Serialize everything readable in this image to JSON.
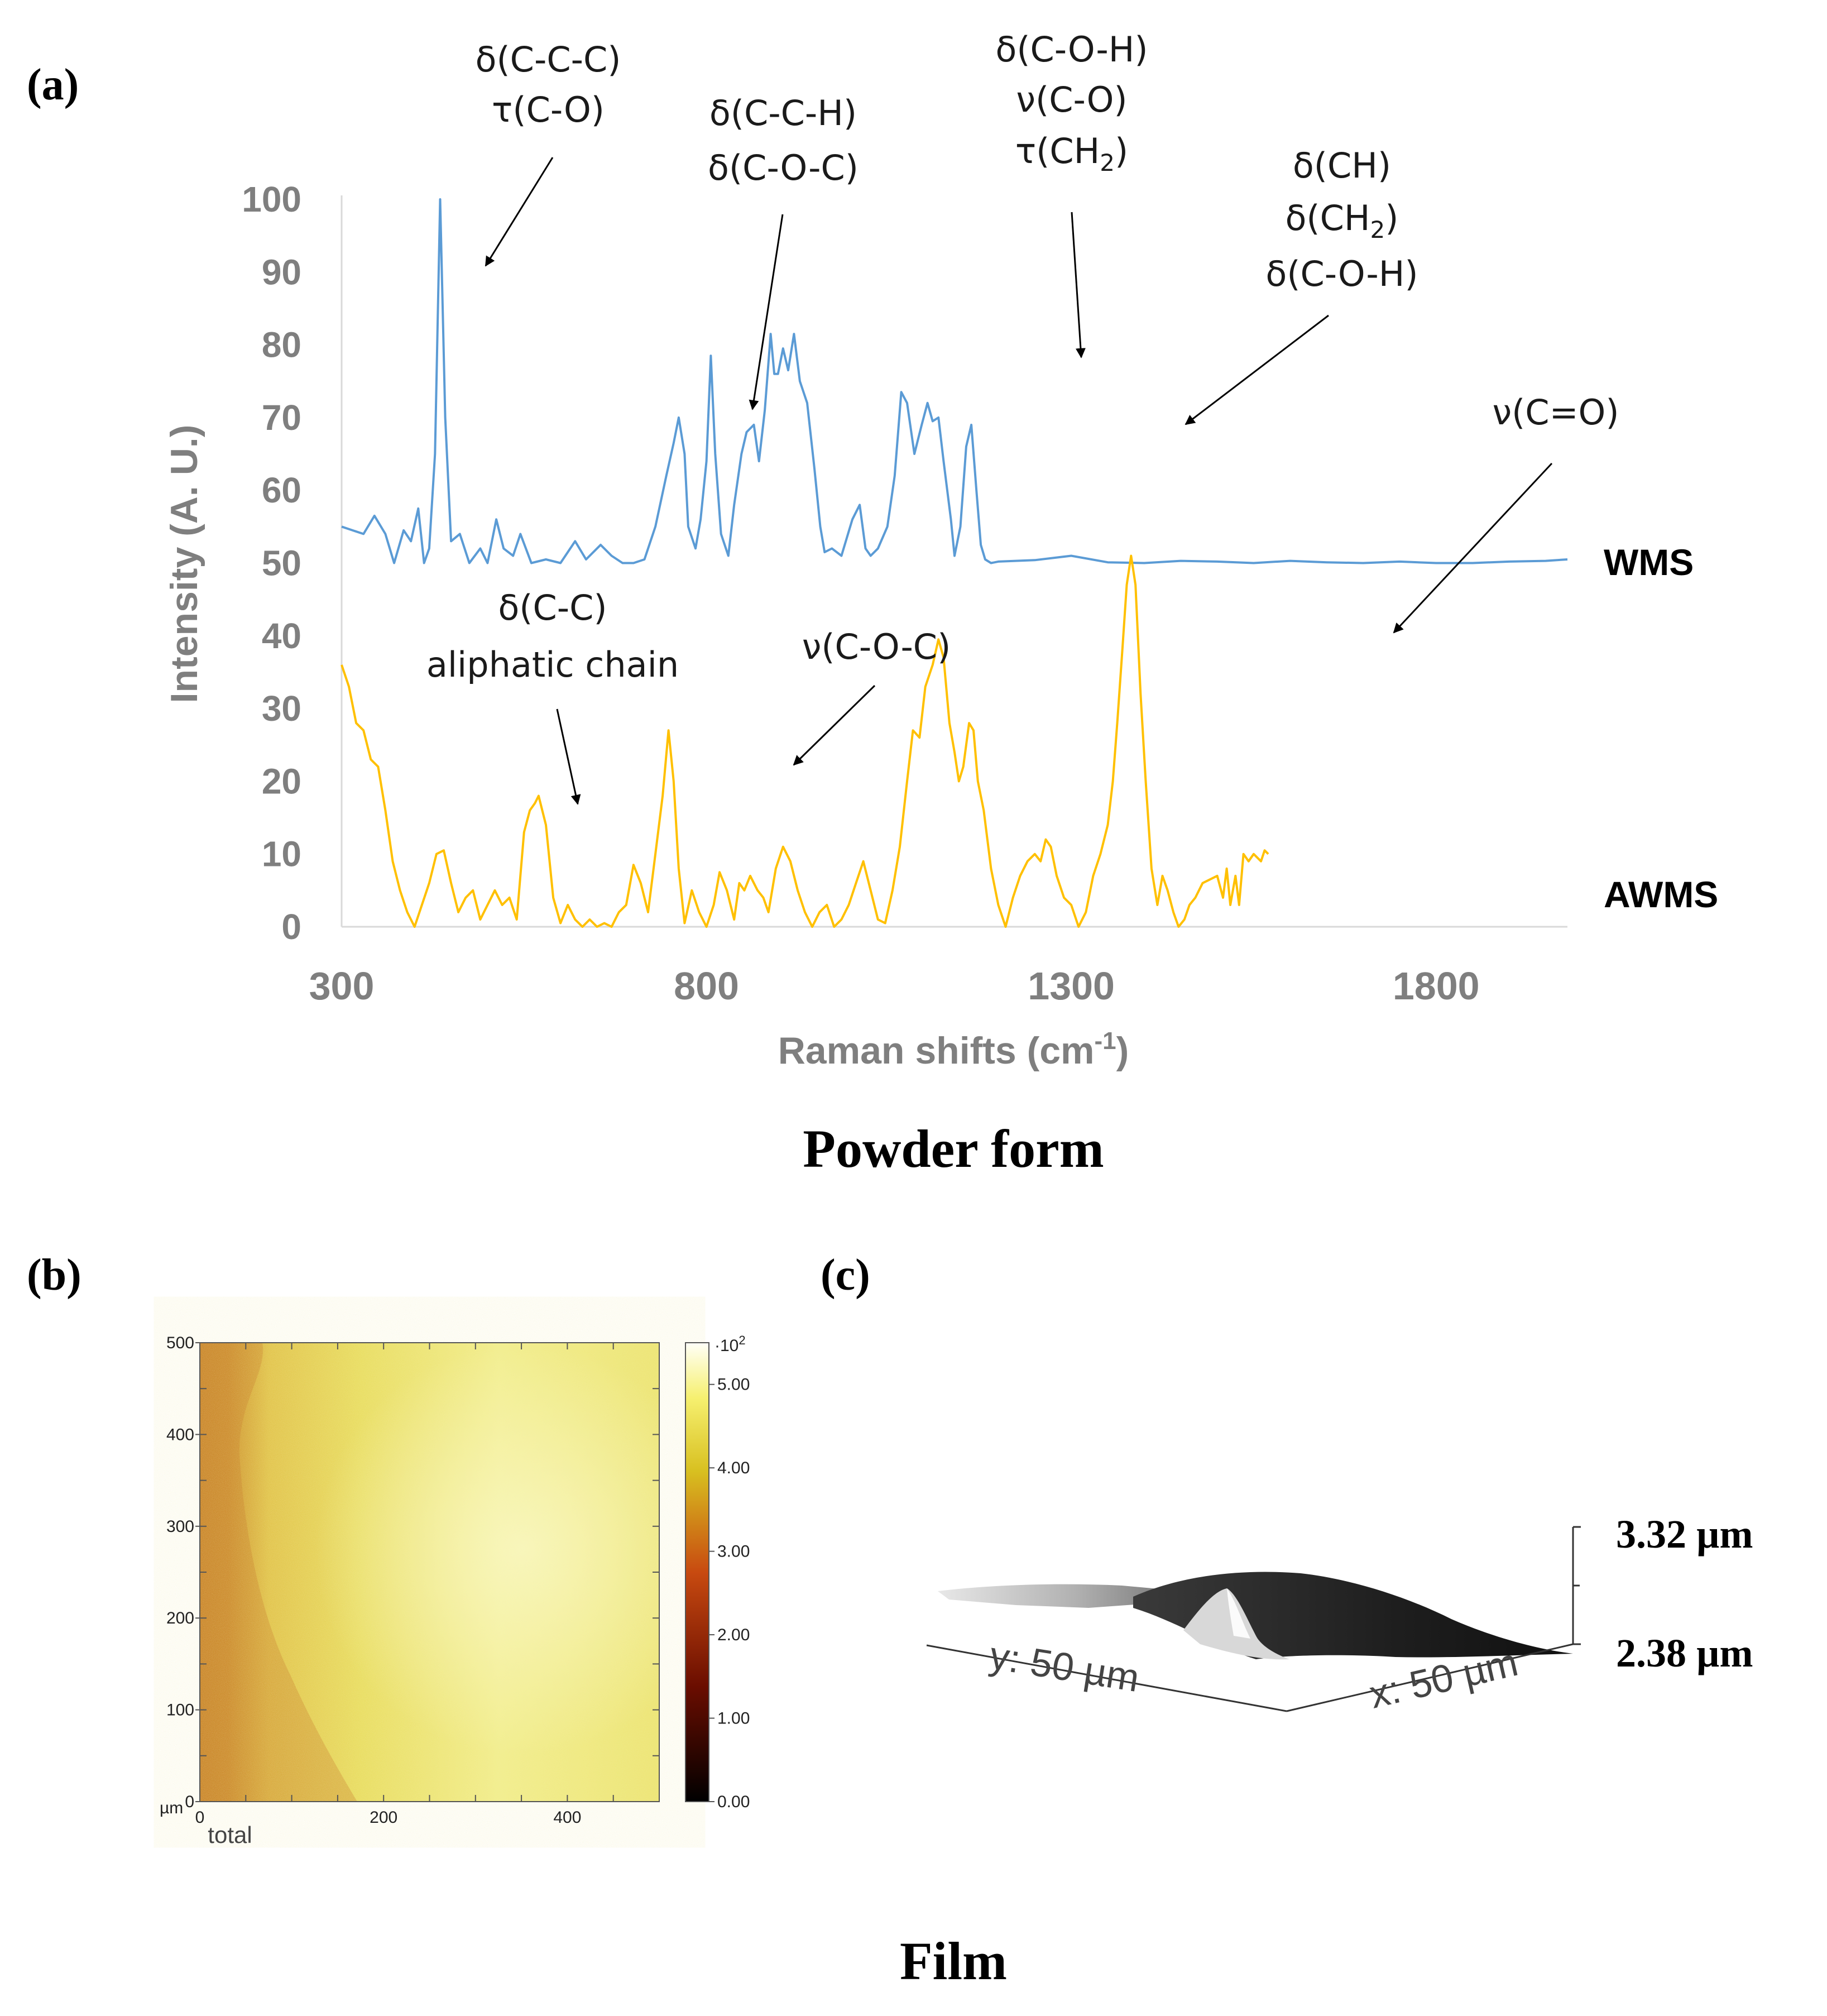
{
  "panels": {
    "a": {
      "label": "(a)"
    },
    "b": {
      "label": "(b)"
    },
    "c": {
      "label": "(c)"
    }
  },
  "captions": {
    "powder": "Powder form",
    "film": "Film"
  },
  "chart_data": [
    {
      "type": "line",
      "title": "",
      "xlabel_main": "Raman shifts (cm",
      "xlabel_sup": "-1",
      "xlabel_end": ")",
      "ylabel": "Intensity (A. U.)",
      "xlim": [
        300,
        1980
      ],
      "ylim": [
        0,
        100
      ],
      "xticks": [
        300,
        800,
        1300,
        1800
      ],
      "yticks": [
        0,
        10,
        20,
        30,
        40,
        50,
        60,
        70,
        80,
        90,
        100
      ],
      "series": [
        {
          "name": "WMS",
          "color": "#5b9bd5",
          "points": [
            [
              300,
              55
            ],
            [
              315,
              54.5
            ],
            [
              330,
              54
            ],
            [
              345,
              56.5
            ],
            [
              360,
              54
            ],
            [
              372,
              50
            ],
            [
              385,
              54.5
            ],
            [
              395,
              53
            ],
            [
              405,
              57.5
            ],
            [
              413,
              50
            ],
            [
              420,
              52
            ],
            [
              428,
              65
            ],
            [
              435,
              100
            ],
            [
              442,
              70
            ],
            [
              450,
              53
            ],
            [
              462,
              54
            ],
            [
              475,
              50
            ],
            [
              490,
              52
            ],
            [
              500,
              50
            ],
            [
              512,
              56
            ],
            [
              522,
              52
            ],
            [
              535,
              51
            ],
            [
              545,
              54
            ],
            [
              560,
              50
            ],
            [
              580,
              50.5
            ],
            [
              600,
              50
            ],
            [
              620,
              53
            ],
            [
              635,
              50.5
            ],
            [
              655,
              52.5
            ],
            [
              670,
              51
            ],
            [
              685,
              50
            ],
            [
              700,
              50
            ],
            [
              715,
              50.5
            ],
            [
              730,
              55
            ],
            [
              745,
              62
            ],
            [
              755,
              66.5
            ],
            [
              762,
              70
            ],
            [
              770,
              65
            ],
            [
              775,
              55
            ],
            [
              785,
              52
            ],
            [
              792,
              56
            ],
            [
              800,
              64
            ],
            [
              806,
              78.5
            ],
            [
              812,
              65
            ],
            [
              820,
              54
            ],
            [
              830,
              51
            ],
            [
              838,
              58
            ],
            [
              848,
              65
            ],
            [
              855,
              68
            ],
            [
              865,
              69
            ],
            [
              872,
              64
            ],
            [
              880,
              71
            ],
            [
              888,
              81.5
            ],
            [
              893,
              76
            ],
            [
              898,
              76
            ],
            [
              905,
              79.5
            ],
            [
              912,
              76.5
            ],
            [
              920,
              81.5
            ],
            [
              928,
              75
            ],
            [
              938,
              72
            ],
            [
              948,
              63
            ],
            [
              956,
              55
            ],
            [
              962,
              51.5
            ],
            [
              972,
              52
            ],
            [
              985,
              51
            ],
            [
              1000,
              56
            ],
            [
              1010,
              58
            ],
            [
              1018,
              52
            ],
            [
              1025,
              51
            ],
            [
              1035,
              52
            ],
            [
              1048,
              55
            ],
            [
              1058,
              62
            ],
            [
              1067,
              73.5
            ],
            [
              1075,
              72
            ],
            [
              1085,
              65
            ],
            [
              1095,
              69
            ],
            [
              1103,
              72
            ],
            [
              1110,
              69.5
            ],
            [
              1118,
              70
            ],
            [
              1125,
              64
            ],
            [
              1135,
              56
            ],
            [
              1140,
              51
            ],
            [
              1148,
              55
            ],
            [
              1156,
              66
            ],
            [
              1163,
              69
            ],
            [
              1170,
              60
            ],
            [
              1176,
              52.5
            ],
            [
              1182,
              50.5
            ],
            [
              1190,
              50
            ],
            [
              1200,
              50.2
            ],
            [
              1250,
              50.4
            ],
            [
              1300,
              51
            ],
            [
              1350,
              50.1
            ],
            [
              1400,
              50
            ],
            [
              1450,
              50.3
            ],
            [
              1500,
              50.2
            ],
            [
              1550,
              50
            ],
            [
              1600,
              50.3
            ],
            [
              1650,
              50.1
            ],
            [
              1700,
              50
            ],
            [
              1750,
              50.2
            ],
            [
              1800,
              50
            ],
            [
              1850,
              50
            ],
            [
              1900,
              50.2
            ],
            [
              1950,
              50.3
            ],
            [
              1980,
              50.5
            ]
          ]
        },
        {
          "name": "AWMS",
          "color": "#ffc000",
          "points": [
            [
              300,
              36
            ],
            [
              310,
              33
            ],
            [
              320,
              28
            ],
            [
              330,
              27
            ],
            [
              340,
              23
            ],
            [
              350,
              22
            ],
            [
              360,
              16
            ],
            [
              370,
              9
            ],
            [
              380,
              5
            ],
            [
              390,
              2
            ],
            [
              400,
              0
            ],
            [
              410,
              3
            ],
            [
              420,
              6
            ],
            [
              430,
              10
            ],
            [
              440,
              10.5
            ],
            [
              450,
              6
            ],
            [
              460,
              2
            ],
            [
              470,
              4
            ],
            [
              480,
              5
            ],
            [
              490,
              1
            ],
            [
              500,
              3
            ],
            [
              510,
              5
            ],
            [
              520,
              3
            ],
            [
              530,
              4
            ],
            [
              540,
              1
            ],
            [
              550,
              13
            ],
            [
              558,
              16
            ],
            [
              565,
              17
            ],
            [
              570,
              18
            ],
            [
              580,
              14
            ],
            [
              590,
              4
            ],
            [
              600,
              0.5
            ],
            [
              610,
              3
            ],
            [
              620,
              1
            ],
            [
              630,
              0
            ],
            [
              640,
              1
            ],
            [
              650,
              0
            ],
            [
              660,
              0.5
            ],
            [
              670,
              0
            ],
            [
              680,
              2
            ],
            [
              690,
              3
            ],
            [
              700,
              8.5
            ],
            [
              710,
              6
            ],
            [
              720,
              2
            ],
            [
              730,
              10
            ],
            [
              740,
              18
            ],
            [
              748,
              27
            ],
            [
              755,
              20
            ],
            [
              762,
              8
            ],
            [
              770,
              0.5
            ],
            [
              780,
              5
            ],
            [
              790,
              2
            ],
            [
              800,
              0
            ],
            [
              810,
              3
            ],
            [
              818,
              7.5
            ],
            [
              828,
              5
            ],
            [
              838,
              1
            ],
            [
              845,
              6
            ],
            [
              852,
              5
            ],
            [
              860,
              7
            ],
            [
              870,
              5
            ],
            [
              878,
              4
            ],
            [
              885,
              2
            ],
            [
              895,
              8
            ],
            [
              905,
              11
            ],
            [
              915,
              9
            ],
            [
              925,
              5
            ],
            [
              935,
              2
            ],
            [
              945,
              0
            ],
            [
              955,
              2
            ],
            [
              965,
              3
            ],
            [
              975,
              0
            ],
            [
              985,
              1
            ],
            [
              995,
              3
            ],
            [
              1005,
              6
            ],
            [
              1015,
              9
            ],
            [
              1025,
              5
            ],
            [
              1035,
              1
            ],
            [
              1045,
              0.5
            ],
            [
              1055,
              5
            ],
            [
              1065,
              11
            ],
            [
              1075,
              20
            ],
            [
              1083,
              27
            ],
            [
              1092,
              26
            ],
            [
              1100,
              33
            ],
            [
              1110,
              36
            ],
            [
              1118,
              39.5
            ],
            [
              1125,
              37
            ],
            [
              1133,
              28
            ],
            [
              1140,
              24
            ],
            [
              1146,
              20
            ],
            [
              1152,
              22
            ],
            [
              1160,
              28
            ],
            [
              1166,
              27
            ],
            [
              1172,
              20
            ],
            [
              1180,
              16
            ],
            [
              1190,
              8
            ],
            [
              1200,
              3
            ],
            [
              1210,
              0
            ],
            [
              1220,
              4
            ],
            [
              1230,
              7
            ],
            [
              1240,
              9
            ],
            [
              1250,
              10
            ],
            [
              1258,
              9
            ],
            [
              1265,
              12
            ],
            [
              1272,
              11
            ],
            [
              1280,
              7
            ],
            [
              1290,
              4
            ],
            [
              1300,
              3
            ],
            [
              1310,
              0
            ],
            [
              1320,
              2
            ],
            [
              1330,
              7
            ],
            [
              1340,
              10
            ],
            [
              1350,
              14
            ],
            [
              1357,
              20
            ],
            [
              1363,
              28
            ],
            [
              1370,
              38
            ],
            [
              1376,
              47
            ],
            [
              1382,
              51
            ],
            [
              1388,
              47
            ],
            [
              1395,
              32
            ],
            [
              1402,
              20
            ],
            [
              1410,
              8
            ],
            [
              1418,
              3
            ],
            [
              1425,
              7
            ],
            [
              1432,
              5
            ],
            [
              1440,
              2
            ],
            [
              1447,
              0
            ],
            [
              1455,
              1
            ],
            [
              1462,
              3
            ],
            [
              1470,
              4
            ],
            [
              1480,
              6
            ],
            [
              1490,
              6.5
            ],
            [
              1500,
              7
            ],
            [
              1508,
              4
            ],
            [
              1513,
              8
            ],
            [
              1518,
              3
            ],
            [
              1525,
              7
            ],
            [
              1530,
              3
            ],
            [
              1536,
              10
            ],
            [
              1543,
              9
            ],
            [
              1550,
              10
            ],
            [
              1560,
              9
            ],
            [
              1565,
              10.5
            ],
            [
              1570,
              10
            ]
          ]
        }
      ]
    },
    {
      "type": "heatmap",
      "xlabel": "total",
      "xunit": "µm",
      "xticks": [
        0,
        200,
        400
      ],
      "yticks": [
        0,
        100,
        200,
        300,
        400,
        500
      ],
      "xlim": [
        0,
        500
      ],
      "ylim": [
        0,
        500
      ],
      "colorbar_ticks": [
        "0.00",
        "1.00",
        "2.00",
        "3.00",
        "4.00",
        "5.00"
      ],
      "colorbar_multiplier": "·10",
      "colorbar_exp": "2",
      "colorbar_range": [
        0,
        5.5
      ]
    },
    {
      "type": "surface",
      "x_label": "x: 50 µm",
      "y_label": "y: 50 µm",
      "z_max": "3.32 µm",
      "z_min": "2.38 µm"
    }
  ],
  "annotations": {
    "wms": [
      {
        "lines": [
          "δ(C-C-C)",
          "τ(C-O)"
        ]
      },
      {
        "lines": [
          "δ(C-C-H)",
          "δ(C-O-C)"
        ]
      },
      {
        "lines": [
          "δ(C-O-H)",
          "ν(C-O)"
        ],
        "sub_line": {
          "prefix": "τ(CH",
          "sub": "2",
          "suffix": ")"
        }
      },
      {
        "lines": [
          "δ(CH)"
        ],
        "sub_line": {
          "prefix": "δ(CH",
          "sub": "2",
          "suffix": ")"
        },
        "last_line": "δ(C-O-H)"
      }
    ],
    "awms": [
      {
        "lines": [
          "ν(C=O)"
        ]
      },
      {
        "lines": [
          "δ(C-C)",
          "aliphatic chain"
        ]
      },
      {
        "lines": [
          "ν(C-O-C)"
        ]
      }
    ]
  }
}
